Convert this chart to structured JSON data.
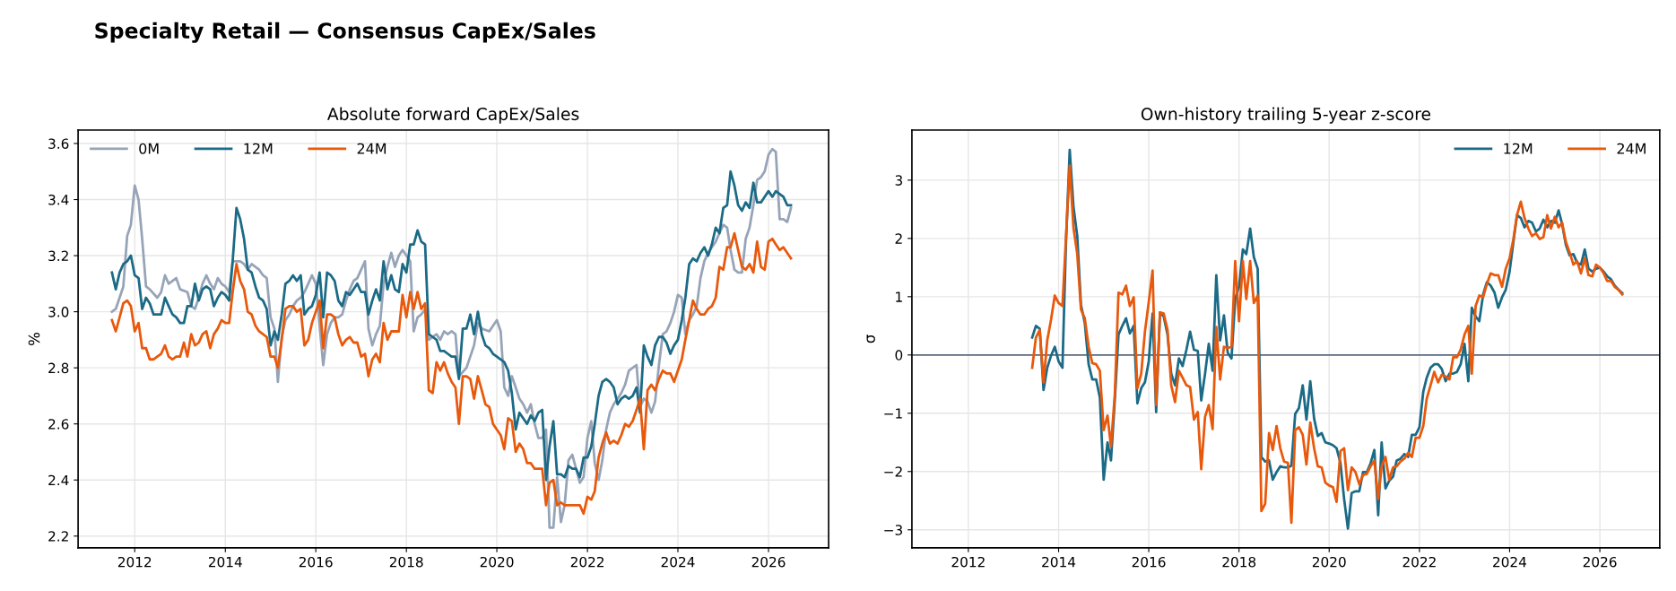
{
  "chart_data": [
    {
      "type": "line",
      "title": "Absolute forward CapEx/Sales",
      "ylabel": "%",
      "annotations": [
        "Specialty Retail — Consensus CapEx/Sales"
      ],
      "x": [
        "2011-07",
        "2011-08",
        "2011-09",
        "2011-10",
        "2011-11",
        "2011-12",
        "2012-01",
        "2012-02",
        "2012-03",
        "2012-04",
        "2012-05",
        "2012-06",
        "2012-07",
        "2012-08",
        "2012-09",
        "2012-10",
        "2012-11",
        "2012-12",
        "2013-01",
        "2013-02",
        "2013-03",
        "2013-04",
        "2013-05",
        "2013-06",
        "2013-07",
        "2013-08",
        "2013-09",
        "2013-10",
        "2013-11",
        "2013-12",
        "2014-01",
        "2014-02",
        "2014-03",
        "2014-04",
        "2014-05",
        "2014-06",
        "2014-07",
        "2014-08",
        "2014-09",
        "2014-10",
        "2014-11",
        "2014-12",
        "2015-01",
        "2015-02",
        "2015-03",
        "2015-04",
        "2015-05",
        "2015-06",
        "2015-07",
        "2015-08",
        "2015-09",
        "2015-10",
        "2015-11",
        "2015-12",
        "2016-01",
        "2016-02",
        "2016-03",
        "2016-04",
        "2016-05",
        "2016-06",
        "2016-07",
        "2016-08",
        "2016-09",
        "2016-10",
        "2016-11",
        "2016-12",
        "2017-01",
        "2017-02",
        "2017-03",
        "2017-04",
        "2017-05",
        "2017-06",
        "2017-07",
        "2017-08",
        "2017-09",
        "2017-10",
        "2017-11",
        "2017-12",
        "2018-01",
        "2018-02",
        "2018-03",
        "2018-04",
        "2018-05",
        "2018-06",
        "2018-07",
        "2018-08",
        "2018-09",
        "2018-10",
        "2018-11",
        "2018-12",
        "2019-01",
        "2019-02",
        "2019-03",
        "2019-04",
        "2019-05",
        "2019-06",
        "2019-07",
        "2019-08",
        "2019-09",
        "2019-10",
        "2019-11",
        "2019-12",
        "2020-01",
        "2020-02",
        "2020-03",
        "2020-04",
        "2020-05",
        "2020-06",
        "2020-07",
        "2020-08",
        "2020-09",
        "2020-10",
        "2020-11",
        "2020-12",
        "2021-01",
        "2021-02",
        "2021-03",
        "2021-04",
        "2021-05",
        "2021-06",
        "2021-07",
        "2021-08",
        "2021-09",
        "2021-10",
        "2021-11",
        "2021-12",
        "2022-01",
        "2022-02",
        "2022-03",
        "2022-04",
        "2022-05",
        "2022-06",
        "2022-07",
        "2022-08",
        "2022-09",
        "2022-10",
        "2022-11",
        "2022-12",
        "2023-01",
        "2023-02",
        "2023-03",
        "2023-04",
        "2023-05",
        "2023-06",
        "2023-07",
        "2023-08",
        "2023-09",
        "2023-10",
        "2023-11",
        "2023-12",
        "2024-01",
        "2024-02",
        "2024-03",
        "2024-04",
        "2024-05",
        "2024-06",
        "2024-07",
        "2024-08",
        "2024-09",
        "2024-10",
        "2024-11",
        "2024-12",
        "2025-01",
        "2025-02",
        "2025-03",
        "2025-04",
        "2025-05",
        "2025-06",
        "2025-07",
        "2025-08",
        "2025-09",
        "2025-10",
        "2025-11",
        "2025-12",
        "2026-01",
        "2026-02",
        "2026-03",
        "2026-04",
        "2026-05",
        "2026-06",
        "2026-07"
      ],
      "series": [
        {
          "name": "0M",
          "color": "#97a4b8",
          "x": [
            "2011-07",
            "2011-08",
            "2011-10",
            "2011-11",
            "2011-12",
            "2012-01",
            "2012-02",
            "2012-03",
            "2012-04",
            "2012-05",
            "2012-07",
            "2012-08",
            "2012-09",
            "2012-10",
            "2012-12",
            "2013-01",
            "2013-03",
            "2013-04",
            "2013-05",
            "2013-06",
            "2013-07",
            "2013-08",
            "2013-09",
            "2013-10",
            "2013-11",
            "2013-12",
            "2014-01",
            "2014-02",
            "2014-03",
            "2014-04",
            "2014-05",
            "2014-06",
            "2014-07",
            "2014-08",
            "2014-09",
            "2014-10",
            "2014-11",
            "2014-12",
            "2015-01",
            "2015-02",
            "2015-03",
            "2015-04",
            "2015-05",
            "2015-06",
            "2015-07",
            "2015-08",
            "2015-09",
            "2015-10",
            "2015-11",
            "2015-12",
            "2016-01",
            "2016-03",
            "2016-04",
            "2016-05",
            "2016-06",
            "2016-07",
            "2016-08",
            "2016-09",
            "2016-10",
            "2016-11",
            "2016-12",
            "2017-01",
            "2017-02",
            "2017-03",
            "2017-04",
            "2017-05",
            "2017-06",
            "2017-07",
            "2017-08",
            "2017-09",
            "2017-10",
            "2017-11",
            "2017-12",
            "2018-01",
            "2018-02",
            "2018-03",
            "2018-04",
            "2018-05",
            "2018-06",
            "2018-07",
            "2018-08",
            "2018-09",
            "2018-10",
            "2018-11",
            "2018-12",
            "2019-01",
            "2019-02",
            "2019-03",
            "2019-05",
            "2019-07",
            "2019-08",
            "2019-09",
            "2019-11",
            "2019-12",
            "2020-01",
            "2020-02",
            "2020-03",
            "2020-04",
            "2020-05",
            "2020-06",
            "2020-07",
            "2020-08",
            "2020-09",
            "2020-10",
            "2020-11",
            "2020-12",
            "2021-01",
            "2021-02",
            "2021-03",
            "2021-04",
            "2021-05",
            "2021-06",
            "2021-07",
            "2021-08",
            "2021-09",
            "2021-10",
            "2021-11",
            "2021-12",
            "2022-01",
            "2022-02",
            "2022-03",
            "2022-04",
            "2022-05",
            "2022-06",
            "2022-07",
            "2022-08",
            "2022-09",
            "2022-10",
            "2022-11",
            "2022-12",
            "2023-01",
            "2023-02",
            "2023-03",
            "2023-04",
            "2023-05",
            "2023-06",
            "2023-07",
            "2023-08",
            "2023-09",
            "2023-10",
            "2023-11",
            "2023-12",
            "2024-01",
            "2024-02",
            "2024-03",
            "2024-04",
            "2024-05",
            "2024-06",
            "2024-07",
            "2024-08",
            "2024-09",
            "2024-10",
            "2024-11",
            "2024-12",
            "2025-01",
            "2025-02",
            "2025-03",
            "2025-04",
            "2025-05",
            "2025-06",
            "2025-07",
            "2025-08",
            "2025-09",
            "2025-10",
            "2025-11",
            "2025-12",
            "2026-01",
            "2026-02",
            "2026-03",
            "2026-04",
            "2026-05",
            "2026-06",
            "2026-07"
          ],
          "values": [
            3.0,
            3.01,
            3.09,
            3.27,
            3.31,
            3.45,
            3.4,
            3.26,
            3.09,
            3.08,
            3.05,
            3.07,
            3.13,
            3.1,
            3.12,
            3.08,
            3.07,
            3.02,
            3.01,
            3.05,
            3.1,
            3.13,
            3.1,
            3.08,
            3.12,
            3.1,
            3.09,
            3.07,
            3.18,
            3.18,
            3.18,
            3.17,
            3.15,
            3.17,
            3.16,
            3.15,
            3.13,
            3.12,
            2.98,
            2.94,
            2.75,
            2.91,
            2.97,
            2.99,
            3.02,
            3.04,
            3.05,
            3.07,
            3.1,
            3.13,
            3.1,
            2.81,
            2.92,
            2.96,
            2.98,
            2.98,
            2.99,
            3.04,
            3.08,
            3.11,
            3.12,
            3.15,
            3.18,
            2.94,
            2.88,
            2.92,
            2.95,
            3.1,
            3.16,
            3.21,
            3.16,
            3.2,
            3.22,
            3.2,
            3.18,
            2.93,
            2.98,
            2.99,
            3.01,
            2.9,
            2.91,
            2.92,
            2.9,
            2.93,
            2.92,
            2.93,
            2.92,
            2.77,
            2.8,
            2.88,
            2.96,
            2.94,
            2.93,
            2.95,
            2.97,
            2.93,
            2.73,
            2.7,
            2.77,
            2.73,
            2.69,
            2.67,
            2.64,
            2.67,
            2.6,
            2.55,
            2.55,
            2.58,
            2.23,
            2.23,
            2.41,
            2.25,
            2.31,
            2.47,
            2.49,
            2.44,
            2.39,
            2.41,
            2.55,
            2.61,
            2.46,
            2.4,
            2.47,
            2.58,
            2.64,
            2.67,
            2.69,
            2.71,
            2.74,
            2.79,
            2.8,
            2.81,
            2.66,
            2.69,
            2.68,
            2.64,
            2.68,
            2.81,
            2.92,
            2.93,
            2.96,
            3.0,
            3.06,
            3.05,
            2.92,
            2.97,
            2.99,
            3.02,
            3.12,
            3.18,
            3.21,
            3.23,
            3.25,
            3.28,
            3.31,
            3.3,
            3.22,
            3.15,
            3.14,
            3.14,
            3.26,
            3.3,
            3.38,
            3.47,
            3.48,
            3.5,
            3.56,
            3.58,
            3.57,
            3.33,
            3.33,
            3.32,
            3.37
          ]
        },
        {
          "name": "12M",
          "color": "#1b6a86",
          "values": [
            3.14,
            3.08,
            3.14,
            3.17,
            3.18,
            3.2,
            3.13,
            3.12,
            3.01,
            3.05,
            3.03,
            2.99,
            2.99,
            2.99,
            3.05,
            3.02,
            2.99,
            2.98,
            2.96,
            2.96,
            3.02,
            3.02,
            3.1,
            3.04,
            3.08,
            3.09,
            3.08,
            3.02,
            3.05,
            3.07,
            3.06,
            3.04,
            3.18,
            3.37,
            3.33,
            3.26,
            3.15,
            3.14,
            3.09,
            3.05,
            3.04,
            3.01,
            2.88,
            2.93,
            2.9,
            2.99,
            3.1,
            3.11,
            3.13,
            3.11,
            3.13,
            2.99,
            3.01,
            3.02,
            3.06,
            3.14,
            2.98,
            3.14,
            3.13,
            3.11,
            3.04,
            3.02,
            3.07,
            3.06,
            3.08,
            3.1,
            3.07,
            3.07,
            2.99,
            3.04,
            3.08,
            3.04,
            3.18,
            3.08,
            3.13,
            3.08,
            3.07,
            3.17,
            3.14,
            3.24,
            3.24,
            3.29,
            3.25,
            3.24,
            2.92,
            2.91,
            2.9,
            2.86,
            2.86,
            2.85,
            2.84,
            2.84,
            2.76,
            2.94,
            2.94,
            2.99,
            2.92,
            3.0,
            2.92,
            2.88,
            2.87,
            2.85,
            2.84,
            2.83,
            2.82,
            2.79,
            2.71,
            2.58,
            2.64,
            2.62,
            2.6,
            2.63,
            2.61,
            2.64,
            2.65,
            2.4,
            2.52,
            2.61,
            2.42,
            2.42,
            2.41,
            2.45,
            2.44,
            2.44,
            2.41,
            2.48,
            2.48,
            2.52,
            2.6,
            2.7,
            2.75,
            2.76,
            2.75,
            2.73,
            2.67,
            2.69,
            2.7,
            2.69,
            2.7,
            2.73,
            2.64,
            2.88,
            2.84,
            2.81,
            2.88,
            2.91,
            2.91,
            2.89,
            2.85,
            2.88,
            2.9,
            2.97,
            3.05,
            3.17,
            3.19,
            3.18,
            3.21,
            3.23,
            3.2,
            3.24,
            3.3,
            3.28,
            3.37,
            3.38,
            3.5,
            3.45,
            3.38,
            3.36,
            3.39,
            3.37,
            3.46,
            3.39,
            3.39,
            3.41,
            3.43,
            3.41,
            3.43,
            3.42,
            3.41,
            3.38,
            3.38
          ]
        },
        {
          "name": "24M",
          "color": "#e8590c",
          "values": [
            2.97,
            2.93,
            2.98,
            3.03,
            3.04,
            3.02,
            2.93,
            2.96,
            2.87,
            2.87,
            2.83,
            2.83,
            2.84,
            2.85,
            2.88,
            2.84,
            2.83,
            2.84,
            2.84,
            2.89,
            2.84,
            2.92,
            2.88,
            2.89,
            2.92,
            2.93,
            2.87,
            2.92,
            2.94,
            2.97,
            2.96,
            2.96,
            3.07,
            3.17,
            3.11,
            3.08,
            3.0,
            2.99,
            2.95,
            2.93,
            2.92,
            2.91,
            2.84,
            2.84,
            2.8,
            2.9,
            3.01,
            3.02,
            3.02,
            3.0,
            3.01,
            2.88,
            2.9,
            2.96,
            3.0,
            3.04,
            2.87,
            2.99,
            2.99,
            2.98,
            2.92,
            2.88,
            2.9,
            2.91,
            2.89,
            2.89,
            2.84,
            2.85,
            2.77,
            2.83,
            2.85,
            2.82,
            2.96,
            2.9,
            2.93,
            2.93,
            2.93,
            3.06,
            2.98,
            3.07,
            3.01,
            3.07,
            3.01,
            3.03,
            2.72,
            2.71,
            2.82,
            2.79,
            2.82,
            2.78,
            2.75,
            2.73,
            2.6,
            2.77,
            2.77,
            2.76,
            2.69,
            2.77,
            2.72,
            2.67,
            2.66,
            2.6,
            2.58,
            2.56,
            2.51,
            2.62,
            2.61,
            2.5,
            2.53,
            2.51,
            2.46,
            2.46,
            2.44,
            2.44,
            2.44,
            2.31,
            2.39,
            2.4,
            2.31,
            2.32,
            2.31,
            2.31,
            2.31,
            2.31,
            2.31,
            2.28,
            2.34,
            2.33,
            2.36,
            2.48,
            2.53,
            2.57,
            2.53,
            2.54,
            2.53,
            2.56,
            2.6,
            2.59,
            2.61,
            2.65,
            2.69,
            2.51,
            2.72,
            2.74,
            2.72,
            2.76,
            2.79,
            2.78,
            2.78,
            2.75,
            2.79,
            2.83,
            2.9,
            2.97,
            3.04,
            3.01,
            2.99,
            2.99,
            3.01,
            3.02,
            3.05,
            3.16,
            3.15,
            3.23,
            3.23,
            3.28,
            3.22,
            3.16,
            3.15,
            3.17,
            3.14,
            3.25,
            3.16,
            3.15,
            3.25,
            3.26,
            3.24,
            3.22,
            3.23,
            3.21,
            3.19
          ]
        }
      ],
      "xlim": [
        "2010-10",
        "2027-05"
      ],
      "xticks": [
        "2012",
        "2014",
        "2016",
        "2018",
        "2020",
        "2022",
        "2024",
        "2026"
      ],
      "ylim": [
        2.158,
        3.648
      ],
      "yticks": [
        2.2,
        2.4,
        2.6,
        2.8,
        {
          "value": 3,
          "label": "3.0"
        },
        3.2,
        3.4,
        3.6
      ],
      "grid": true,
      "legend": "top left",
      "line_style": "solid",
      "marker": "none"
    },
    {
      "type": "line",
      "title": "Own-history trailing 5-year z-score",
      "ylabel": "σ",
      "x": [
        "2013-06",
        "2013-07",
        "2013-08",
        "2013-09",
        "2013-10",
        "2013-11",
        "2013-12",
        "2014-01",
        "2014-02",
        "2014-03",
        "2014-04",
        "2014-05",
        "2014-06",
        "2014-07",
        "2014-08",
        "2014-09",
        "2014-10",
        "2014-11",
        "2014-12",
        "2015-01",
        "2015-02",
        "2015-03",
        "2015-04",
        "2015-05",
        "2015-06",
        "2015-07",
        "2015-08",
        "2015-09",
        "2015-10",
        "2015-11",
        "2015-12",
        "2016-01",
        "2016-02",
        "2016-03",
        "2016-04",
        "2016-05",
        "2016-06",
        "2016-07",
        "2016-08",
        "2016-09",
        "2016-10",
        "2016-11",
        "2016-12",
        "2017-01",
        "2017-02",
        "2017-03",
        "2017-04",
        "2017-05",
        "2017-06",
        "2017-07",
        "2017-08",
        "2017-09",
        "2017-10",
        "2017-11",
        "2017-12",
        "2018-01",
        "2018-02",
        "2018-03",
        "2018-04",
        "2018-05",
        "2018-06",
        "2018-07",
        "2018-08",
        "2018-09",
        "2018-10",
        "2018-11",
        "2018-12",
        "2019-01",
        "2019-02",
        "2019-03",
        "2019-04",
        "2019-05",
        "2019-06",
        "2019-07",
        "2019-08",
        "2019-09",
        "2019-10",
        "2019-11",
        "2019-12",
        "2020-01",
        "2020-02",
        "2020-03",
        "2020-04",
        "2020-05",
        "2020-06",
        "2020-07",
        "2020-08",
        "2020-09",
        "2020-10",
        "2020-11",
        "2020-12",
        "2021-01",
        "2021-02",
        "2021-03",
        "2021-04",
        "2021-05",
        "2021-06",
        "2021-07",
        "2021-08",
        "2021-09",
        "2021-10",
        "2021-11",
        "2021-12",
        "2022-01",
        "2022-02",
        "2022-03",
        "2022-04",
        "2022-05",
        "2022-06",
        "2022-07",
        "2022-08",
        "2022-09",
        "2022-10",
        "2022-11",
        "2022-12",
        "2023-01",
        "2023-02",
        "2023-03",
        "2023-04",
        "2023-05",
        "2023-06",
        "2023-07",
        "2023-08",
        "2023-09",
        "2023-10",
        "2023-11",
        "2023-12",
        "2024-01",
        "2024-02",
        "2024-03",
        "2024-04",
        "2024-05",
        "2024-06",
        "2024-07",
        "2024-08",
        "2024-09",
        "2024-10",
        "2024-11",
        "2024-12",
        "2025-01",
        "2025-02",
        "2025-03",
        "2025-04",
        "2025-05",
        "2025-06",
        "2025-07",
        "2025-08",
        "2025-09",
        "2025-10",
        "2025-11",
        "2025-12",
        "2026-01",
        "2026-02",
        "2026-03",
        "2026-04",
        "2026-05",
        "2026-06",
        "2026-07"
      ],
      "series": [
        {
          "name": "12M",
          "color": "#1b6a86",
          "values": [
            0.3,
            0.5,
            0.45,
            -0.6,
            -0.22,
            -0.01,
            0.14,
            -0.11,
            -0.22,
            1.89,
            3.52,
            2.55,
            2.04,
            0.86,
            0.55,
            -0.16,
            -0.42,
            -0.42,
            -0.73,
            -2.14,
            -1.5,
            -1.81,
            -0.78,
            0.35,
            0.5,
            0.63,
            0.37,
            0.5,
            -0.83,
            -0.57,
            -0.47,
            -0.11,
            0.71,
            -0.98,
            0.73,
            0.66,
            0.35,
            -0.32,
            -0.52,
            -0.06,
            -0.19,
            0.09,
            0.4,
            0.09,
            0.07,
            -0.78,
            -0.32,
            0.19,
            -0.27,
            1.37,
            0.25,
            0.68,
            0.04,
            -0.06,
            0.96,
            1.17,
            1.81,
            1.73,
            2.17,
            1.68,
            1.48,
            -1.75,
            -1.83,
            -1.81,
            -2.14,
            -2.01,
            -1.91,
            -1.93,
            -1.93,
            -1.9,
            -1.01,
            -0.91,
            -0.52,
            -1.11,
            -0.45,
            -1.09,
            -1.39,
            -1.34,
            -1.5,
            -1.52,
            -1.55,
            -1.6,
            -1.85,
            -2.47,
            -2.98,
            -2.37,
            -2.34,
            -2.34,
            -2.01,
            -2.01,
            -1.86,
            -1.63,
            -2.75,
            -1.5,
            -2.29,
            -2.16,
            -2.09,
            -1.81,
            -1.78,
            -1.7,
            -1.75,
            -1.37,
            -1.37,
            -1.24,
            -0.63,
            -0.39,
            -0.22,
            -0.16,
            -0.16,
            -0.24,
            -0.45,
            -0.32,
            -0.32,
            -0.29,
            -0.16,
            0.19,
            -0.45,
            0.81,
            0.66,
            0.58,
            1.04,
            1.25,
            1.19,
            1.07,
            0.81,
            0.99,
            1.12,
            1.43,
            1.94,
            2.4,
            2.35,
            2.19,
            2.3,
            2.27,
            2.12,
            2.17,
            2.32,
            2.19,
            2.3,
            2.27,
            2.48,
            2.25,
            1.89,
            1.71,
            1.73,
            1.58,
            1.55,
            1.81,
            1.48,
            1.43,
            1.48,
            1.5,
            1.43,
            1.35,
            1.3,
            1.19,
            1.12,
            1.06
          ]
        },
        {
          "name": "24M",
          "color": "#e8590c",
          "values": [
            -0.22,
            0.3,
            0.43,
            -0.47,
            0.25,
            0.61,
            1.02,
            0.89,
            0.84,
            1.99,
            3.25,
            2.19,
            1.73,
            0.78,
            0.63,
            0.14,
            -0.14,
            -0.16,
            -0.27,
            -1.29,
            -1.04,
            -1.57,
            -0.68,
            1.07,
            1.04,
            1.19,
            0.84,
            0.99,
            -0.57,
            -0.32,
            0.4,
            0.91,
            1.45,
            -0.86,
            0.73,
            0.71,
            0.43,
            -0.52,
            -0.81,
            -0.27,
            -0.39,
            -0.52,
            -0.55,
            -1.11,
            -0.98,
            -1.96,
            -1.06,
            -0.86,
            -1.27,
            0.48,
            -0.42,
            0.14,
            0.12,
            0.14,
            1.61,
            0.58,
            1.61,
            0.96,
            1.61,
            0.89,
            1.02,
            -2.68,
            -2.55,
            -1.34,
            -1.63,
            -1.22,
            -1.6,
            -1.83,
            -1.85,
            -2.88,
            -1.29,
            -1.24,
            -1.37,
            -1.88,
            -1.16,
            -1.6,
            -1.91,
            -1.93,
            -2.19,
            -2.24,
            -2.27,
            -2.52,
            -1.65,
            -1.6,
            -2.32,
            -1.93,
            -2.01,
            -2.22,
            -2.06,
            -2.04,
            -1.91,
            -1.81,
            -2.47,
            -1.91,
            -1.75,
            -2.14,
            -1.93,
            -1.91,
            -1.83,
            -1.78,
            -1.68,
            -1.75,
            -1.42,
            -1.42,
            -1.22,
            -0.75,
            -0.52,
            -0.29,
            -0.47,
            -0.34,
            -0.37,
            -0.42,
            -0.04,
            -0.04,
            0.09,
            0.35,
            0.5,
            -0.32,
            0.84,
            1.02,
            0.99,
            1.22,
            1.4,
            1.37,
            1.37,
            1.17,
            1.48,
            1.66,
            1.99,
            2.4,
            2.63,
            2.35,
            2.17,
            2.04,
            2.09,
            1.99,
            2.02,
            2.4,
            2.17,
            2.37,
            2.19,
            2.27,
            1.94,
            1.76,
            1.55,
            1.61,
            1.4,
            1.66,
            1.37,
            1.35,
            1.55,
            1.5,
            1.4,
            1.27,
            1.27,
            1.17,
            1.12,
            1.04
          ]
        }
      ],
      "xlim": [
        "2010-10",
        "2027-05"
      ],
      "xticks": [
        "2012",
        "2014",
        "2016",
        "2018",
        "2020",
        "2022",
        "2024",
        "2026"
      ],
      "ylim": [
        -3.31,
        3.86
      ],
      "yticks": [
        {
          "value": -3,
          "label": "−3"
        },
        {
          "value": -2,
          "label": "−2"
        },
        {
          "value": -1,
          "label": "−1"
        },
        0,
        1,
        2,
        3
      ],
      "ref_lines": [
        {
          "axis": "y",
          "value": 0,
          "color": "#5b6b82"
        }
      ],
      "grid": true,
      "legend": "top right",
      "line_style": "solid",
      "marker": "none"
    }
  ]
}
